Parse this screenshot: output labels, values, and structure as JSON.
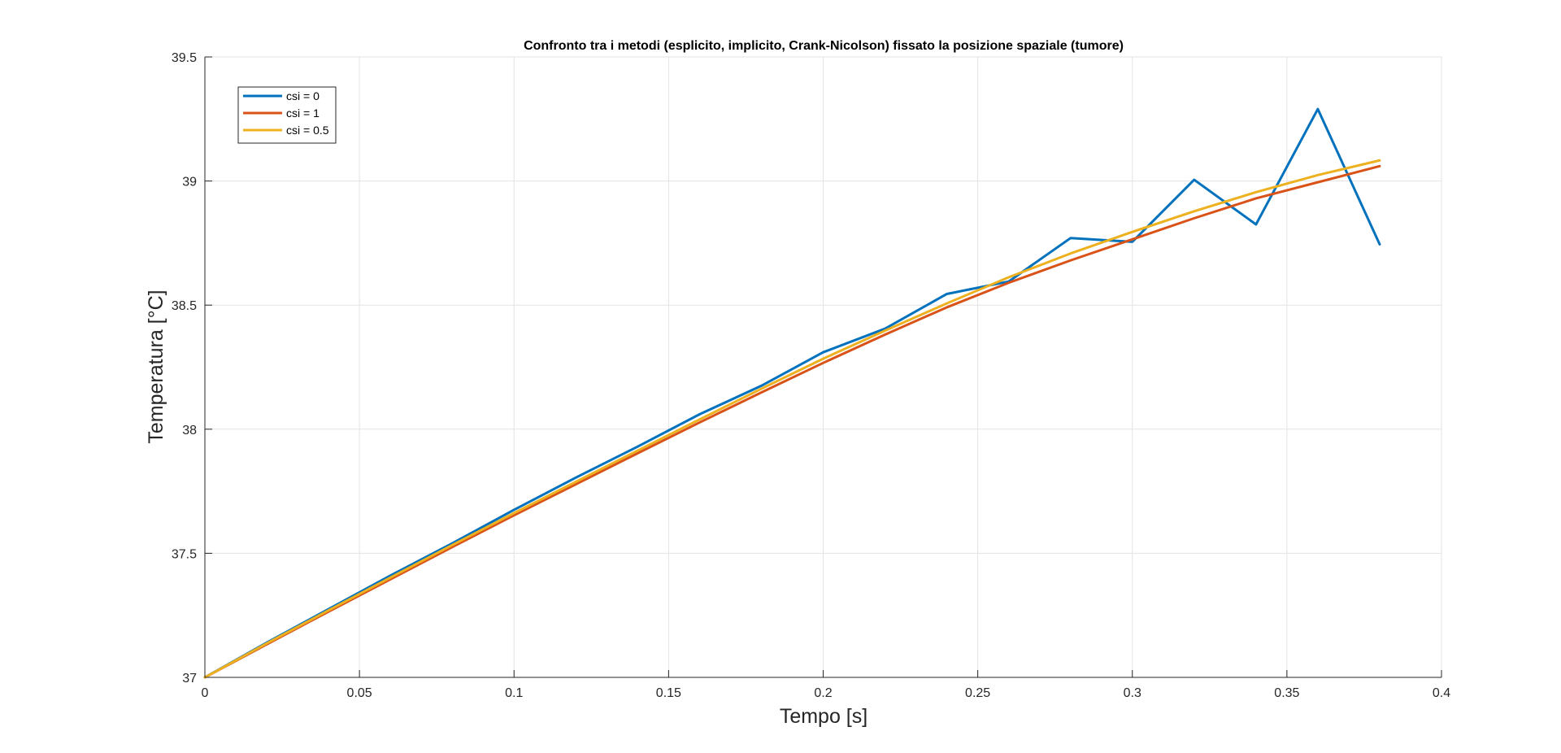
{
  "chart_data": {
    "type": "line",
    "title": "Confronto tra i metodi (esplicito, implicito, Crank-Nicolson) fissato la posizione spaziale (tumore)",
    "xlabel": "Tempo [s]",
    "ylabel": "Temperatura [°C]",
    "xlim": [
      0,
      0.4
    ],
    "ylim": [
      37,
      39.5
    ],
    "xticks": [
      0,
      0.05,
      0.1,
      0.15,
      0.2,
      0.25,
      0.3,
      0.35,
      0.4
    ],
    "xtick_labels": [
      "0",
      "0.05",
      "0.1",
      "0.15",
      "0.2",
      "0.25",
      "0.3",
      "0.35",
      "0.4"
    ],
    "yticks": [
      37,
      37.5,
      38,
      38.5,
      39,
      39.5
    ],
    "ytick_labels": [
      "37",
      "37.5",
      "38",
      "38.5",
      "39",
      "39.5"
    ],
    "grid": true,
    "legend_position": "top-left",
    "x": [
      0,
      0.02,
      0.04,
      0.06,
      0.08,
      0.1,
      0.12,
      0.14,
      0.16,
      0.18,
      0.2,
      0.22,
      0.24,
      0.26,
      0.28,
      0.3,
      0.32,
      0.34,
      0.36,
      0.38
    ],
    "series": [
      {
        "name": "csi = 0",
        "color": "#0072BD",
        "values": [
          37.0,
          37.14,
          37.275,
          37.41,
          37.54,
          37.675,
          37.805,
          37.93,
          38.06,
          38.175,
          38.31,
          38.405,
          38.545,
          38.595,
          38.77,
          38.755,
          39.005,
          38.825,
          39.29,
          38.745
        ]
      },
      {
        "name": "csi = 1",
        "color": "#D95319",
        "values": [
          37.0,
          37.133,
          37.265,
          37.395,
          37.525,
          37.653,
          37.778,
          37.903,
          38.027,
          38.148,
          38.267,
          38.381,
          38.491,
          38.59,
          38.68,
          38.765,
          38.85,
          38.93,
          38.995,
          39.06
        ]
      },
      {
        "name": "csi = 0.5",
        "color": "#EDB120",
        "values": [
          37.0,
          37.137,
          37.27,
          37.402,
          37.533,
          37.662,
          37.788,
          37.914,
          38.039,
          38.163,
          38.284,
          38.397,
          38.507,
          38.612,
          38.708,
          38.795,
          38.878,
          38.955,
          39.024,
          39.083
        ]
      }
    ]
  }
}
